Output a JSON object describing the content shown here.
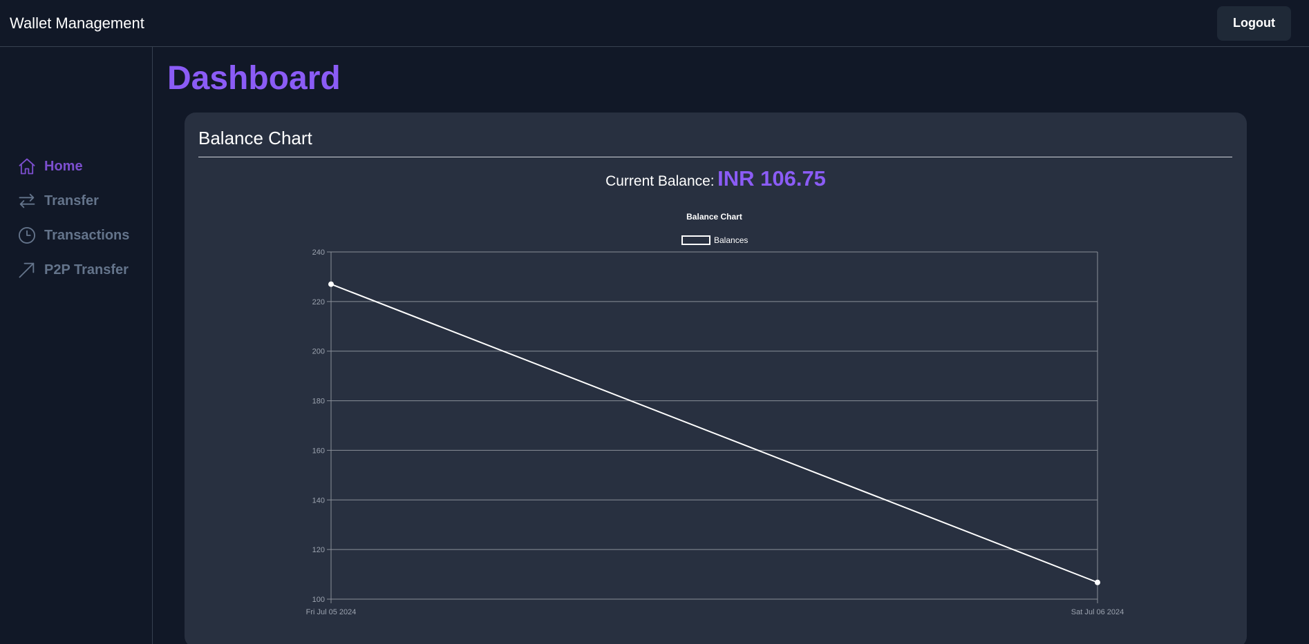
{
  "header": {
    "brand": "Wallet Management",
    "logout_label": "Logout"
  },
  "sidebar": {
    "items": [
      {
        "label": "Home",
        "icon": "home-icon",
        "active": true
      },
      {
        "label": "Transfer",
        "icon": "transfer-arrows-icon",
        "active": false
      },
      {
        "label": "Transactions",
        "icon": "clock-icon",
        "active": false
      },
      {
        "label": "P2P Transfer",
        "icon": "arrow-up-right-icon",
        "active": false
      }
    ]
  },
  "main": {
    "title": "Dashboard",
    "card": {
      "title": "Balance Chart",
      "balance_label": "Current Balance:",
      "balance_value": "INR 106.75"
    }
  },
  "colors": {
    "background": "#111827",
    "card": "#283040",
    "accent": "#8b5cf6",
    "nav_inactive": "#64748b"
  },
  "chart_data": {
    "type": "line",
    "title": "Balance Chart",
    "x": [
      "Fri Jul 05 2024",
      "Sat Jul 06 2024"
    ],
    "series": [
      {
        "name": "Balances",
        "values": [
          227,
          106.75
        ]
      }
    ],
    "ylim": [
      100,
      240
    ],
    "yticks": [
      100,
      120,
      140,
      160,
      180,
      200,
      220,
      240
    ],
    "xlabel": "",
    "ylabel": "",
    "grid": true,
    "legend": "top-center"
  }
}
